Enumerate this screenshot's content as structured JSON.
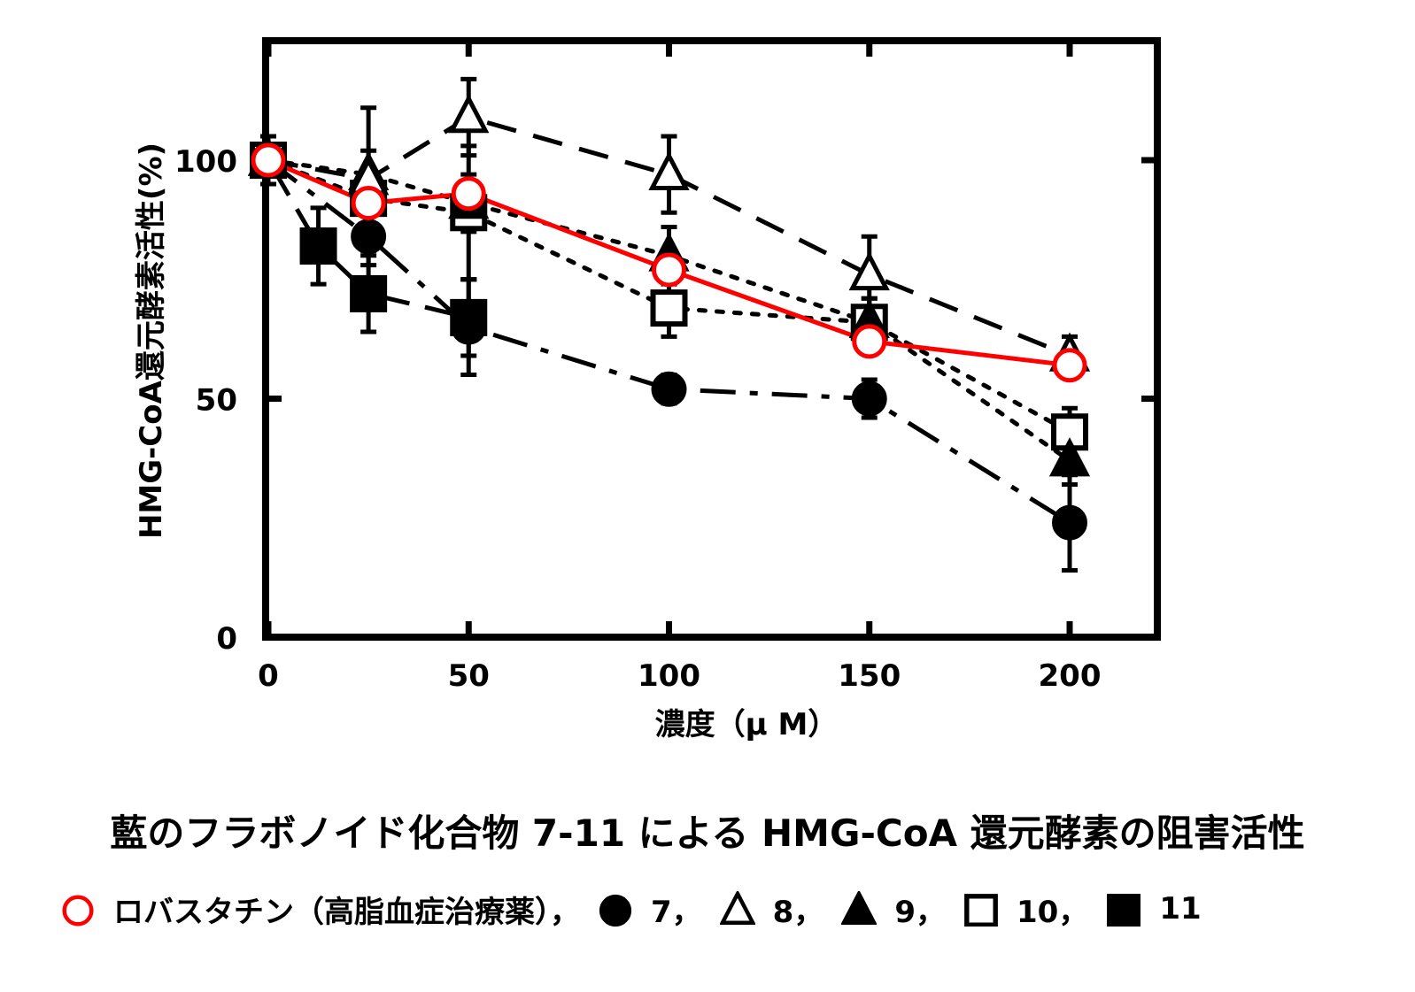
{
  "chart_data": {
    "type": "line",
    "xlabel": "濃度（μ M）",
    "ylabel": "HMG-CoA還元酵素活性(%)",
    "xlim": [
      0,
      225
    ],
    "ylim": [
      0,
      125
    ],
    "xticks": [
      0,
      50,
      100,
      150,
      200
    ],
    "yticks": [
      0,
      50,
      100
    ],
    "grid": false,
    "series": [
      {
        "name": "ロバスタチン（高脂血症治療薬）",
        "marker": "open-circle",
        "color": "#ff0000",
        "line": "solid",
        "x": [
          0,
          25,
          50,
          100,
          150,
          200
        ],
        "y": [
          100,
          91,
          93,
          77,
          62,
          57
        ]
      },
      {
        "name": "7",
        "marker": "filled-circle",
        "color": "#000000",
        "line": "dashdot",
        "x": [
          0,
          25,
          50,
          100,
          150,
          200
        ],
        "y": [
          100,
          84,
          65,
          52,
          50,
          24
        ],
        "err": [
          5,
          6,
          10,
          3,
          4,
          10
        ]
      },
      {
        "name": "8",
        "marker": "open-triangle",
        "color": "#000000",
        "line": "dashed",
        "x": [
          0,
          25,
          50,
          100,
          150,
          200
        ],
        "y": [
          100,
          96,
          109,
          97,
          76,
          59
        ],
        "err": [
          5,
          15,
          8,
          8,
          8,
          4
        ]
      },
      {
        "name": "9",
        "marker": "filled-triangle",
        "color": "#000000",
        "line": "dotted",
        "x": [
          0,
          25,
          50,
          100,
          150,
          200
        ],
        "y": [
          100,
          97,
          91,
          80,
          66,
          37
        ],
        "err": [
          5,
          5,
          6,
          6,
          5,
          5
        ]
      },
      {
        "name": "10",
        "marker": "open-square",
        "color": "#000000",
        "line": "dotted",
        "x": [
          0,
          25,
          50,
          100,
          150,
          200
        ],
        "y": [
          100,
          92,
          89,
          69,
          66,
          43
        ],
        "err": [
          5,
          6,
          14,
          6,
          5,
          5
        ]
      },
      {
        "name": "11",
        "marker": "filled-square",
        "color": "#000000",
        "line": "longdash",
        "x": [
          0,
          12.5,
          25,
          50
        ],
        "y": [
          100,
          82,
          72,
          67
        ],
        "err": [
          5,
          8,
          8,
          8
        ]
      }
    ]
  },
  "caption": "藍のフラボノイド化合物 7-11 による HMG-CoA 還元酵素の阻害活性",
  "legend_items": [
    {
      "marker": "open-circle",
      "color": "#ff0000",
      "label": "ロバスタチン（高脂血症治療薬），"
    },
    {
      "marker": "filled-circle",
      "color": "#000000",
      "label": "7，"
    },
    {
      "marker": "open-triangle",
      "color": "#000000",
      "label": "8，"
    },
    {
      "marker": "filled-triangle",
      "color": "#000000",
      "label": "9，"
    },
    {
      "marker": "open-square",
      "color": "#000000",
      "label": "10，"
    },
    {
      "marker": "filled-square",
      "color": "#000000",
      "label": "11"
    }
  ]
}
